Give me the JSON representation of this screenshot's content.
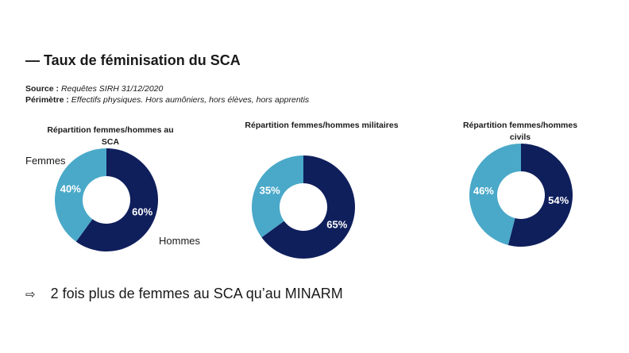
{
  "title": "— Taux de féminisation du SCA",
  "source": {
    "source_label": "Source :",
    "source_value": "Requêtes SIRH 31/12/2020",
    "perimeter_label": "Périmètre :",
    "perimeter_value": "Effectifs physiques. Hors aumôniers, hors élèves, hors apprentis"
  },
  "colors": {
    "femmes": "#4aa9c9",
    "hommes": "#0f1f5c"
  },
  "labels": {
    "femmes": "Femmes",
    "hommes": "Hommes"
  },
  "chart_data": [
    {
      "type": "pie",
      "title": "Répartition femmes/hommes au SCA",
      "categories": [
        "Femmes",
        "Hommes"
      ],
      "values": [
        40,
        60
      ],
      "labels": [
        "40%",
        "60%"
      ],
      "donut": true
    },
    {
      "type": "pie",
      "title": "Répartition femmes/hommes militaires",
      "categories": [
        "Femmes",
        "Hommes"
      ],
      "values": [
        35,
        65
      ],
      "labels": [
        "35%",
        "65%"
      ],
      "donut": true
    },
    {
      "type": "pie",
      "title": "Répartition femmes/hommes civils",
      "categories": [
        "Femmes",
        "Hommes"
      ],
      "values": [
        46,
        54
      ],
      "labels": [
        "46%",
        "54%"
      ],
      "donut": true
    }
  ],
  "conclusion": {
    "arrow": "⇨",
    "text": "2 fois plus de femmes au SCA qu’au MINARM"
  }
}
